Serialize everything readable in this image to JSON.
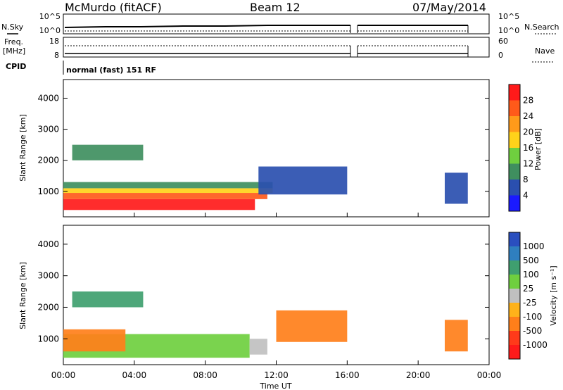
{
  "header": {
    "station": "McMurdo (fitACF)",
    "beam": "Beam 12",
    "date": "07/May/2014"
  },
  "left_labels": {
    "nsky": "N.Sky",
    "freq_line1": "Freq.",
    "freq_line2": "[MHz]",
    "cpid": "CPID"
  },
  "right_labels": {
    "nsearch": "N.Search",
    "nave": "Nave"
  },
  "noise_axis": {
    "left_ticks": [
      "10^5",
      "10^0"
    ],
    "right_ticks": [
      "10^5",
      "10^0"
    ]
  },
  "freq_axis": {
    "left_ticks": [
      "18",
      "8"
    ],
    "right_ticks": [
      "60",
      "0"
    ]
  },
  "cpid_text": "normal (fast) 151 RF",
  "x_axis": {
    "label": "Time UT",
    "ticks": [
      "00:00",
      "04:00",
      "08:00",
      "12:00",
      "16:00",
      "20:00",
      "00:00"
    ]
  },
  "y_axis": {
    "label": "Slant Range [km]",
    "ticks": [
      "1000",
      "2000",
      "3000",
      "4000"
    ]
  },
  "power_scale": {
    "label": "Power [dB]",
    "ticks": [
      "4",
      "8",
      "12",
      "16",
      "20",
      "24",
      "28"
    ],
    "colors": [
      "#1a1aff",
      "#2a4faf",
      "#3f8f5f",
      "#6fcf3f",
      "#ffd21a",
      "#ff9a1a",
      "#ff5a1a",
      "#ff1a1a"
    ]
  },
  "velocity_scale": {
    "label": "Velocity [m s⁻¹]",
    "ticks": [
      "1000",
      "500",
      "100",
      "25",
      "-25",
      "-100",
      "-500",
      "-1000"
    ],
    "colors": [
      "#2a4fbf",
      "#2f7fbf",
      "#3f9f6f",
      "#6fcf3f",
      "#c0c0c0",
      "#ffb21a",
      "#ff7f1a",
      "#ff3a1a",
      "#ff1a1a"
    ]
  },
  "chart_data": [
    {
      "type": "heatmap",
      "name": "power",
      "xlabel": "Time UT",
      "ylabel": "Slant Range [km]",
      "xlim_hours": [
        0,
        24
      ],
      "ylim_km": [
        180,
        4600
      ],
      "zlabel": "Power [dB]",
      "regions": [
        {
          "t0": 0.0,
          "t1": 10.8,
          "r0": 400,
          "r1": 750,
          "value": 30
        },
        {
          "t0": 0.0,
          "t1": 11.5,
          "r0": 750,
          "r1": 950,
          "value": 24
        },
        {
          "t0": 0.0,
          "t1": 11.8,
          "r0": 950,
          "r1": 1100,
          "value": 16
        },
        {
          "t0": 0.0,
          "t1": 11.8,
          "r0": 1100,
          "r1": 1300,
          "value": 8
        },
        {
          "t0": 11.0,
          "t1": 16.0,
          "r0": 900,
          "r1": 1800,
          "value": 6
        },
        {
          "t0": 0.5,
          "t1": 4.5,
          "r0": 2000,
          "r1": 2500,
          "value": 8
        },
        {
          "t0": 21.5,
          "t1": 22.8,
          "r0": 600,
          "r1": 1600,
          "value": 6
        }
      ]
    },
    {
      "type": "heatmap",
      "name": "velocity",
      "xlabel": "Time UT",
      "ylabel": "Slant Range [km]",
      "xlim_hours": [
        0,
        24
      ],
      "ylim_km": [
        180,
        4600
      ],
      "zlabel": "Velocity [m s⁻¹]",
      "regions": [
        {
          "t0": 0.0,
          "t1": 10.5,
          "r0": 400,
          "r1": 1150,
          "value": 80
        },
        {
          "t0": 0.0,
          "t1": 3.5,
          "r0": 600,
          "r1": 1300,
          "value": -150
        },
        {
          "t0": 10.5,
          "t1": 11.5,
          "r0": 500,
          "r1": 1000,
          "value": 0
        },
        {
          "t0": 12.0,
          "t1": 16.0,
          "r0": 900,
          "r1": 1900,
          "value": -150
        },
        {
          "t0": 0.5,
          "t1": 4.5,
          "r0": 2000,
          "r1": 2500,
          "value": 150
        },
        {
          "t0": 21.5,
          "t1": 22.8,
          "r0": 600,
          "r1": 1600,
          "value": -200
        }
      ]
    }
  ]
}
